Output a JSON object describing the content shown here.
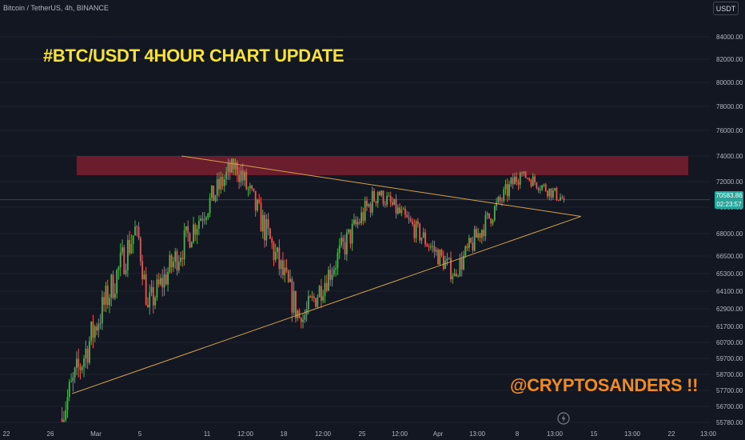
{
  "header": {
    "symbol": "Bitcoin / TetherUS, 4h, BINANCE",
    "currency": "USDT"
  },
  "annotations": {
    "title": "#BTC/USDT 4HOUR CHART UPDATE",
    "watermark": "@CRYPTOSANDERS !!"
  },
  "price_tag": {
    "price": "70583.86",
    "countdown": "02:23:57"
  },
  "colors": {
    "background": "#131722",
    "up": "#26a69a",
    "up_bright": "#4caf50",
    "down": "#ef5350",
    "resistance_zone": "#7a1f2e",
    "trendline": "#d4a14a",
    "title": "#f5e23a",
    "watermark": "#f08a24"
  },
  "chart_data": {
    "type": "candlestick",
    "interval": "4h",
    "y_axis_ticks": [
      "84000.00",
      "82000.00",
      "80000.00",
      "78000.00",
      "76000.00",
      "74000.00",
      "72000.00",
      "70000.00",
      "68000.00",
      "66500.00",
      "65300.00",
      "64100.00",
      "62900.00",
      "61700.00",
      "60700.00",
      "59700.00",
      "58700.00",
      "57700.00",
      "56700.00",
      "55780.00"
    ],
    "x_axis_ticks": [
      "22",
      "26",
      "Mar",
      "5",
      "11",
      "12:00",
      "18",
      "12:00",
      "25",
      "12:00",
      "Apr",
      "13:00",
      "8",
      "13:00",
      "15",
      "13:00",
      "22",
      "13:00"
    ],
    "resistance_zone": {
      "from": 72500,
      "to": 74000
    },
    "trendlines": [
      {
        "name": "descending",
        "from": [
          "Mar 9",
          74000
        ],
        "to": [
          "Apr 13",
          69300
        ]
      },
      {
        "name": "ascending",
        "from": [
          "Feb 28",
          57500
        ],
        "to": [
          "Apr 13",
          69300
        ]
      }
    ],
    "last_price": 70583.86,
    "series_segments": [
      {
        "from": "Feb 27",
        "to": "Mar 5",
        "open": 56000,
        "close": 68500,
        "high": 69000,
        "low": 55800
      },
      {
        "from": "Mar 5",
        "to": "Mar 6",
        "open": 68500,
        "close": 63000,
        "high": 68900,
        "low": 59000
      },
      {
        "from": "Mar 6",
        "to": "Mar 14",
        "open": 63000,
        "close": 73500,
        "high": 73800,
        "low": 62500
      },
      {
        "from": "Mar 14",
        "to": "Mar 20",
        "open": 73500,
        "close": 62000,
        "high": 73800,
        "low": 61200
      },
      {
        "from": "Mar 20",
        "to": "Mar 27",
        "open": 62000,
        "close": 71200,
        "high": 71600,
        "low": 61500
      },
      {
        "from": "Mar 27",
        "to": "Apr 3",
        "open": 71200,
        "close": 65300,
        "high": 71300,
        "low": 64600
      },
      {
        "from": "Apr 3",
        "to": "Apr 9",
        "open": 65300,
        "close": 72700,
        "high": 72800,
        "low": 65100
      },
      {
        "from": "Apr 9",
        "to": "Apr 13",
        "open": 72700,
        "close": 70584,
        "high": 72800,
        "low": 68700
      }
    ]
  }
}
